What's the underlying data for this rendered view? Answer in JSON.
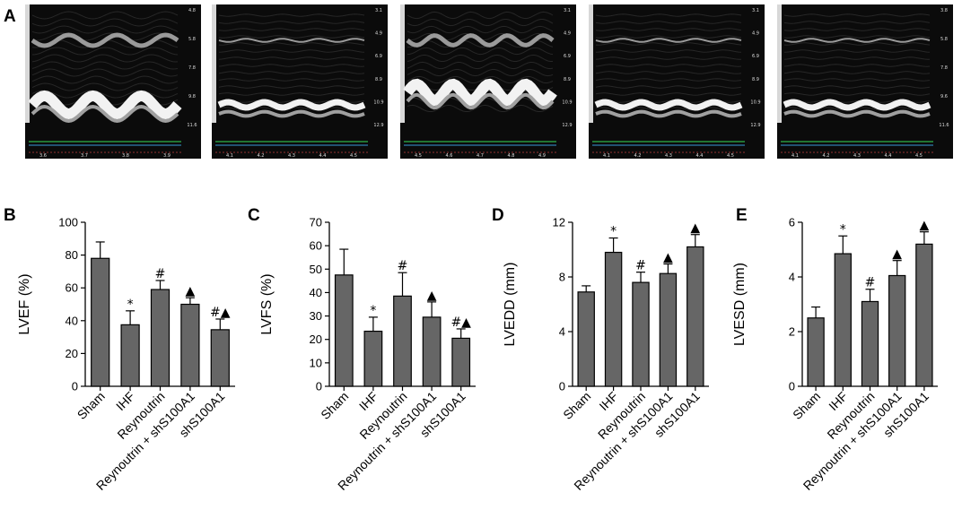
{
  "panel_a": {
    "letter": "A",
    "images": [
      {
        "depth_ticks": [
          "4.8",
          "5.8",
          "7.8",
          "9.8",
          "11.6"
        ],
        "time_ticks": [
          "3.6",
          "3.7",
          "3.8",
          "3.9"
        ],
        "wall": "thick",
        "motion": "strong"
      },
      {
        "depth_ticks": [
          "3.1",
          "4.9",
          "6.9",
          "8.9",
          "10.9",
          "12.9"
        ],
        "time_ticks": [
          "4.1",
          "4.2",
          "4.3",
          "4.4",
          "4.5"
        ],
        "wall": "thin",
        "motion": "weak"
      },
      {
        "depth_ticks": [
          "3.1",
          "4.9",
          "6.9",
          "8.9",
          "10.9",
          "12.9"
        ],
        "time_ticks": [
          "4.5",
          "4.6",
          "4.7",
          "4.8",
          "4.9"
        ],
        "wall": "thick",
        "motion": "medium"
      },
      {
        "depth_ticks": [
          "3.1",
          "4.9",
          "6.9",
          "8.9",
          "10.9",
          "12.9"
        ],
        "time_ticks": [
          "4.1",
          "4.2",
          "4.3",
          "4.4",
          "4.5"
        ],
        "wall": "thin",
        "motion": "weak"
      },
      {
        "depth_ticks": [
          "3.8",
          "5.8",
          "7.8",
          "9.6",
          "11.6"
        ],
        "time_ticks": [
          "4.1",
          "4.2",
          "4.3",
          "4.4",
          "4.5"
        ],
        "wall": "thin",
        "motion": "weak"
      }
    ]
  },
  "chart_data": [
    {
      "type": "bar",
      "letter": "B",
      "categories": [
        "Sham",
        "IHF",
        "Reynoutrin",
        "Reynoutrin + shS100A1",
        "shS100A1"
      ],
      "values": [
        78,
        37.5,
        59,
        50,
        34.5
      ],
      "errors": [
        10,
        8.5,
        5.5,
        4,
        6.5
      ],
      "annotations": [
        "",
        "*",
        "#",
        "▲",
        "#▲"
      ],
      "ylabel": "LVEF (%)",
      "ylim": [
        0,
        100
      ],
      "yticks": [
        0,
        20,
        40,
        60,
        80,
        100
      ],
      "bar_color": "#666666"
    },
    {
      "type": "bar",
      "letter": "C",
      "categories": [
        "Sham",
        "IHF",
        "Reynoutrin",
        "Reynoutrin + shS100A1",
        "shS100A1"
      ],
      "values": [
        47.5,
        23.5,
        38.5,
        29.5,
        20.5
      ],
      "errors": [
        11,
        6,
        10,
        6.5,
        4
      ],
      "annotations": [
        "",
        "*",
        "#",
        "▲",
        "#▲"
      ],
      "ylabel": "LVFS (%)",
      "ylim": [
        0,
        70
      ],
      "yticks": [
        0,
        10,
        20,
        30,
        40,
        50,
        60,
        70
      ],
      "bar_color": "#666666"
    },
    {
      "type": "bar",
      "letter": "D",
      "categories": [
        "Sham",
        "IHF",
        "Reynoutrin",
        "Reynoutrin + shS100A1",
        "shS100A1"
      ],
      "values": [
        6.9,
        9.8,
        7.6,
        8.25,
        10.2
      ],
      "errors": [
        0.45,
        1.05,
        0.75,
        0.7,
        0.9
      ],
      "annotations": [
        "",
        "*",
        "#",
        "▲",
        "▲"
      ],
      "ylabel": "LVEDD (mm)",
      "ylim": [
        0,
        12
      ],
      "yticks": [
        0,
        4,
        8,
        12
      ],
      "bar_color": "#666666"
    },
    {
      "type": "bar",
      "letter": "E",
      "categories": [
        "Sham",
        "IHF",
        "Reynoutrin",
        "Reynoutrin + shS100A1",
        "shS100A1"
      ],
      "values": [
        2.5,
        4.85,
        3.1,
        4.05,
        5.2
      ],
      "errors": [
        0.4,
        0.65,
        0.45,
        0.55,
        0.45
      ],
      "annotations": [
        "",
        "*",
        "#",
        "▲",
        "▲"
      ],
      "ylabel": "LVESD (mm)",
      "ylim": [
        0,
        6
      ],
      "yticks": [
        0,
        2,
        4,
        6
      ],
      "bar_color": "#666666"
    }
  ]
}
